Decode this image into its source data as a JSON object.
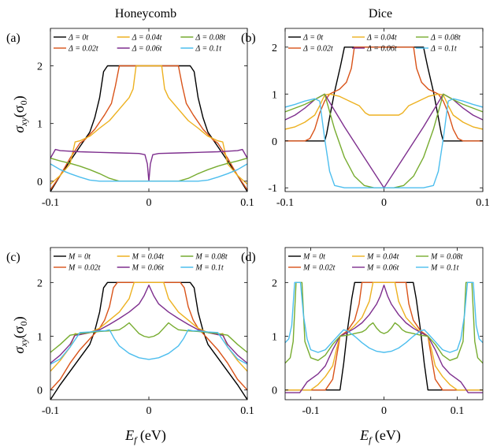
{
  "column_titles": [
    "Honeycomb",
    "Dice"
  ],
  "colors": {
    "black": "#000000",
    "orange": "#D95319",
    "yellow": "#EDB120",
    "purple": "#7E2F8E",
    "green": "#77AC30",
    "cyan": "#4DBEEE"
  },
  "labels": {
    "ylabel": "σxy(σ0)",
    "xlabel": "Ef (eV)"
  },
  "chart_data": [
    {
      "type": "line",
      "panel": "(a)",
      "column_title": "Honeycomb",
      "xlim": [
        -0.1,
        0.1
      ],
      "ylim": [
        -0.18,
        2.65
      ],
      "xticks": [
        -0.1,
        0,
        0.1
      ],
      "xtick_labels": [
        "-0.1",
        "0",
        "0.1"
      ],
      "yticks": [
        0,
        1,
        2
      ],
      "ytick_labels": [
        "0",
        "1",
        "2"
      ],
      "legend": [
        "Δ = 0t",
        "Δ = 0.02t",
        "Δ = 0.04t",
        "Δ = 0.06t",
        "Δ = 0.08t",
        "Δ = 0.1t"
      ],
      "series": [
        {
          "name": "Δ = 0t",
          "color": "black",
          "x": [
            0,
            0.042,
            0.046,
            0.05,
            0.055,
            0.06,
            0.07,
            0.08,
            0.09,
            0.1
          ],
          "y": [
            2,
            2,
            1.9,
            1.45,
            1.1,
            0.85,
            0.6,
            0.35,
            0.1,
            -0.18
          ],
          "symmetric": true
        },
        {
          "name": "Δ = 0.02t",
          "color": "orange",
          "x": [
            0,
            0.03,
            0.034,
            0.038,
            0.045,
            0.055,
            0.065,
            0.07,
            0.08,
            0.09,
            0.1
          ],
          "y": [
            2,
            2,
            1.65,
            1.35,
            1.15,
            0.9,
            0.72,
            0.66,
            0.4,
            0.1,
            -0.15
          ],
          "symmetric": true
        },
        {
          "name": "Δ = 0.04t",
          "color": "yellow",
          "x": [
            0,
            0.013,
            0.016,
            0.02,
            0.03,
            0.04,
            0.05,
            0.06,
            0.07,
            0.075,
            0.08,
            0.09,
            0.1
          ],
          "y": [
            2,
            2,
            1.6,
            1.45,
            1.25,
            1.05,
            0.92,
            0.78,
            0.7,
            0.68,
            0.3,
            0.1,
            -0.05
          ],
          "symmetric": true
        },
        {
          "name": "Δ = 0.06t",
          "color": "purple",
          "x": [
            0,
            0.0015,
            0.004,
            0.01,
            0.03,
            0.05,
            0.07,
            0.08,
            0.09,
            0.095,
            0.1
          ],
          "y": [
            0.0,
            0.3,
            0.46,
            0.48,
            0.49,
            0.5,
            0.51,
            0.52,
            0.53,
            0.55,
            0.4
          ],
          "symmetric": true
        },
        {
          "name": "Δ = 0.08t",
          "color": "green",
          "x": [
            0,
            0.02,
            0.03,
            0.04,
            0.05,
            0.06,
            0.07,
            0.08,
            0.09,
            0.1
          ],
          "y": [
            0,
            0,
            0.0,
            0.05,
            0.13,
            0.2,
            0.26,
            0.31,
            0.35,
            0.4
          ],
          "symmetric": true
        },
        {
          "name": "Δ = 0.1t",
          "color": "cyan",
          "x": [
            0,
            0.04,
            0.05,
            0.06,
            0.07,
            0.08,
            0.09,
            0.1
          ],
          "y": [
            0,
            0,
            0.0,
            0.02,
            0.07,
            0.13,
            0.2,
            0.3
          ],
          "symmetric": true
        }
      ]
    },
    {
      "type": "line",
      "panel": "(b)",
      "column_title": "Dice",
      "xlim": [
        -0.1,
        0.1
      ],
      "ylim": [
        -1.08,
        2.4
      ],
      "xticks": [
        -0.1,
        0,
        0.1
      ],
      "xtick_labels": [
        "-0.1",
        "0",
        "0.1"
      ],
      "yticks": [
        -1,
        0,
        1,
        2
      ],
      "ytick_labels": [
        "-1",
        "0",
        "1",
        "2"
      ],
      "legend": [
        "Δ = 0t",
        "Δ = 0.02t",
        "Δ = 0.04t",
        "Δ = 0.06t",
        "Δ = 0.08t",
        "Δ = 0.1t"
      ],
      "series": [
        {
          "name": "Δ = 0t",
          "color": "black",
          "x": [
            0,
            0.04,
            0.044,
            0.05,
            0.055,
            0.058,
            0.06,
            0.1
          ],
          "y": [
            2,
            2,
            1.6,
            1.05,
            0.5,
            0.15,
            0,
            0
          ],
          "symmetric": true
        },
        {
          "name": "Δ = 0.02t",
          "color": "orange",
          "x": [
            0,
            0.03,
            0.033,
            0.038,
            0.045,
            0.055,
            0.06,
            0.065,
            0.07,
            0.075,
            0.08,
            0.1
          ],
          "y": [
            2,
            2,
            1.55,
            1.25,
            1.1,
            1.0,
            0.85,
            0.6,
            0.25,
            0.05,
            0,
            0
          ],
          "symmetric": true
        },
        {
          "name": "Δ = 0.04t",
          "color": "yellow",
          "x": [
            0,
            0.015,
            0.019,
            0.025,
            0.035,
            0.045,
            0.055,
            0.06,
            0.065,
            0.07,
            0.08,
            0.09,
            0.1
          ],
          "y": [
            0.55,
            0.55,
            0.6,
            0.75,
            0.85,
            0.95,
            1.0,
            0.98,
            0.75,
            0.55,
            0.4,
            0.3,
            0.25
          ],
          "symmetric": true
        },
        {
          "name": "Δ = 0.06t",
          "color": "purple",
          "x": [
            0,
            0.02,
            0.04,
            0.06,
            0.07,
            0.08,
            0.09,
            0.1
          ],
          "y": [
            -1,
            -0.35,
            0.3,
            1.0,
            0.88,
            0.7,
            0.55,
            0.45
          ],
          "symmetric": true
        },
        {
          "name": "Δ = 0.08t",
          "color": "green",
          "x": [
            0,
            0.01,
            0.02,
            0.03,
            0.04,
            0.05,
            0.06,
            0.07,
            0.08,
            0.09,
            0.1
          ],
          "y": [
            -1,
            -1,
            -0.95,
            -0.75,
            -0.35,
            0.25,
            1.0,
            0.88,
            0.78,
            0.7,
            0.62
          ],
          "symmetric": true
        },
        {
          "name": "Δ = 0.1t",
          "color": "cyan",
          "x": [
            0,
            0.04,
            0.05,
            0.055,
            0.06,
            0.065,
            0.07,
            0.08,
            0.09,
            0.1
          ],
          "y": [
            -1,
            -1,
            -0.95,
            -0.65,
            0.05,
            0.85,
            0.9,
            0.85,
            0.78,
            0.72
          ],
          "symmetric": true
        }
      ]
    },
    {
      "type": "line",
      "panel": "(c)",
      "column_title": "Honeycomb",
      "xlim": [
        -0.1,
        0.1
      ],
      "ylim": [
        -0.18,
        2.65
      ],
      "xticks": [
        -0.1,
        0,
        0.1
      ],
      "xtick_labels": [
        "-0.1",
        "0",
        "0.1"
      ],
      "yticks": [
        0,
        1,
        2
      ],
      "ytick_labels": [
        "0",
        "1",
        "2"
      ],
      "legend": [
        "M = 0t",
        "M = 0.02t",
        "M = 0.04t",
        "M = 0.06t",
        "M = 0.08t",
        "M = 0.1t"
      ],
      "series": [
        {
          "name": "M = 0t",
          "color": "black",
          "x": [
            0,
            0.042,
            0.046,
            0.05,
            0.055,
            0.06,
            0.07,
            0.08,
            0.09,
            0.1
          ],
          "y": [
            2,
            2,
            1.9,
            1.45,
            1.1,
            0.85,
            0.6,
            0.35,
            0.1,
            -0.18
          ],
          "symmetric": true
        },
        {
          "name": "M = 0.02t",
          "color": "orange",
          "x": [
            0,
            0.032,
            0.036,
            0.04,
            0.045,
            0.05,
            0.06,
            0.07,
            0.08,
            0.09,
            0.1
          ],
          "y": [
            2,
            2,
            1.9,
            1.55,
            1.3,
            1.15,
            0.95,
            0.75,
            0.5,
            0.2,
            0.0
          ],
          "symmetric": true
        },
        {
          "name": "M = 0.04t",
          "color": "yellow",
          "x": [
            0,
            0.015,
            0.02,
            0.03,
            0.04,
            0.05,
            0.06,
            0.07,
            0.075,
            0.08,
            0.09,
            0.1
          ],
          "y": [
            2,
            2,
            1.7,
            1.45,
            1.3,
            1.15,
            1.07,
            1.03,
            1.05,
            0.8,
            0.55,
            0.35
          ],
          "symmetric": true
        },
        {
          "name": "M = 0.06t",
          "color": "purple",
          "x": [
            0,
            0.005,
            0.01,
            0.02,
            0.03,
            0.04,
            0.05,
            0.06,
            0.07,
            0.075,
            0.08,
            0.09,
            0.1
          ],
          "y": [
            1.95,
            1.75,
            1.6,
            1.45,
            1.33,
            1.22,
            1.12,
            1.07,
            1.03,
            1.02,
            0.85,
            0.65,
            0.5
          ],
          "symmetric": true
        },
        {
          "name": "M = 0.08t",
          "color": "green",
          "x": [
            0,
            0.005,
            0.01,
            0.015,
            0.02,
            0.025,
            0.03,
            0.04,
            0.05,
            0.06,
            0.07,
            0.08,
            0.09,
            0.1
          ],
          "y": [
            0.98,
            1.0,
            1.05,
            1.15,
            1.25,
            1.18,
            1.12,
            1.1,
            1.09,
            1.07,
            1.05,
            1.02,
            0.85,
            0.7
          ],
          "symmetric": true
        },
        {
          "name": "M = 0.1t",
          "color": "cyan",
          "x": [
            0,
            0.01,
            0.02,
            0.03,
            0.035,
            0.04,
            0.045,
            0.05,
            0.06,
            0.07,
            0.08,
            0.09,
            0.1
          ],
          "y": [
            0.57,
            0.6,
            0.68,
            0.82,
            0.95,
            1.12,
            1.1,
            1.1,
            1.08,
            1.07,
            0.8,
            0.58,
            0.48
          ],
          "symmetric": true
        }
      ]
    },
    {
      "type": "line",
      "panel": "(d)",
      "column_title": "Dice",
      "xlim": [
        -0.135,
        0.135
      ],
      "ylim": [
        -0.18,
        2.65
      ],
      "xticks": [
        -0.1,
        0,
        0.1
      ],
      "xtick_labels": [
        "-0.1",
        "0",
        "0.1"
      ],
      "yticks": [
        0,
        1,
        2
      ],
      "ytick_labels": [
        "0",
        "1",
        "2"
      ],
      "legend": [
        "M = 0t",
        "M = 0.02t",
        "M = 0.04t",
        "M = 0.06t",
        "M = 0.08t",
        "M = 0.1t"
      ],
      "series": [
        {
          "name": "M = 0t",
          "color": "black",
          "x": [
            0,
            0.04,
            0.044,
            0.05,
            0.055,
            0.06,
            0.135
          ],
          "y": [
            2,
            2,
            1.7,
            1.1,
            0.5,
            0,
            0
          ],
          "symmetric": true
        },
        {
          "name": "M = 0.02t",
          "color": "orange",
          "x": [
            0,
            0.03,
            0.034,
            0.04,
            0.05,
            0.06,
            0.065,
            0.07,
            0.08,
            0.135
          ],
          "y": [
            2,
            2,
            1.6,
            1.3,
            1.1,
            1.0,
            0.6,
            0.2,
            0,
            0
          ],
          "symmetric": true
        },
        {
          "name": "M = 0.04t",
          "color": "yellow",
          "x": [
            0,
            0.015,
            0.02,
            0.03,
            0.04,
            0.05,
            0.06,
            0.065,
            0.07,
            0.08,
            0.09,
            0.1,
            0.135
          ],
          "y": [
            2,
            2,
            1.65,
            1.35,
            1.2,
            1.07,
            1.0,
            0.75,
            0.45,
            0.25,
            0.1,
            0,
            0
          ],
          "symmetric": true
        },
        {
          "name": "M = 0.06t",
          "color": "purple",
          "x": [
            0,
            0.005,
            0.01,
            0.02,
            0.03,
            0.04,
            0.05,
            0.06,
            0.07,
            0.08,
            0.09,
            0.1,
            0.105,
            0.11,
            0.115,
            0.135
          ],
          "y": [
            1.95,
            1.75,
            1.6,
            1.4,
            1.25,
            1.15,
            1.07,
            1.0,
            0.75,
            0.45,
            0.3,
            0.2,
            0.15,
            0.05,
            -0.05,
            -0.05
          ],
          "symmetric": true
        },
        {
          "name": "M = 0.08t",
          "color": "green",
          "x": [
            0,
            0.005,
            0.01,
            0.015,
            0.02,
            0.025,
            0.03,
            0.04,
            0.05,
            0.06,
            0.07,
            0.08,
            0.09,
            0.1,
            0.108,
            0.112,
            0.116,
            0.12,
            0.124,
            0.128,
            0.135
          ],
          "y": [
            1.05,
            1.08,
            1.15,
            1.25,
            1.2,
            1.12,
            1.08,
            1.05,
            1.02,
            1.0,
            0.85,
            0.65,
            0.55,
            0.6,
            0.9,
            2.0,
            2.0,
            2.0,
            0.9,
            0.6,
            0.5
          ],
          "symmetric": true
        },
        {
          "name": "M = 0.1t",
          "color": "cyan",
          "x": [
            0,
            0.01,
            0.02,
            0.03,
            0.04,
            0.05,
            0.055,
            0.06,
            0.07,
            0.08,
            0.09,
            0.1,
            0.105,
            0.11,
            0.114,
            0.118,
            0.122,
            0.126,
            0.13,
            0.135
          ],
          "y": [
            0.7,
            0.72,
            0.78,
            0.88,
            1.0,
            1.1,
            1.12,
            1.05,
            0.9,
            0.75,
            0.7,
            0.75,
            0.95,
            1.4,
            2.0,
            2.0,
            2.0,
            1.2,
            0.95,
            0.88
          ],
          "symmetric": true
        }
      ]
    }
  ]
}
